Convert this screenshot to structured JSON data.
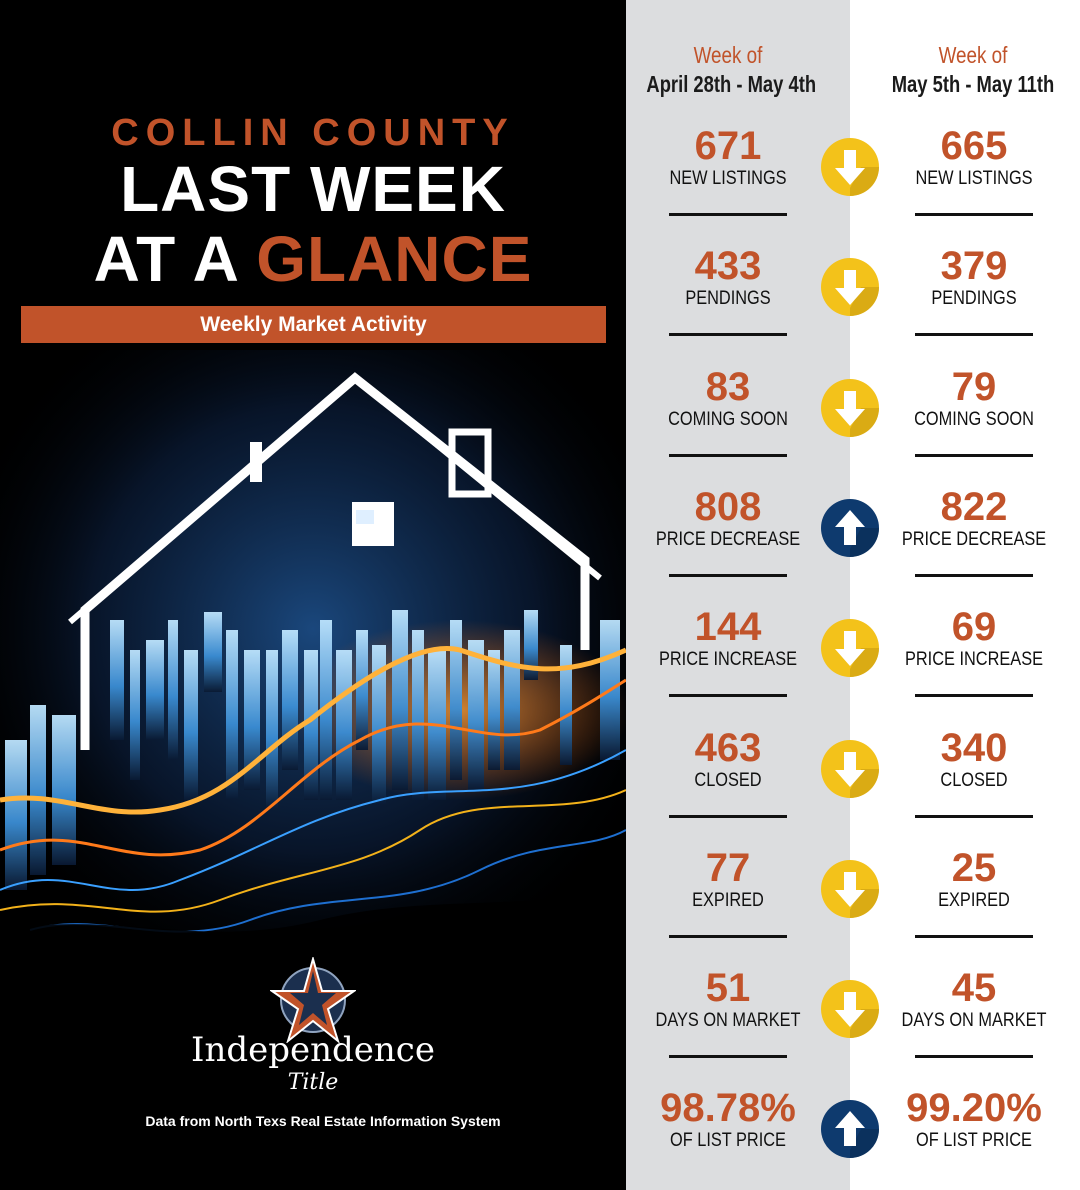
{
  "header": {
    "county": "COLLIN COUNTY",
    "headline_line1": "LAST WEEK",
    "headline_line2_white": "AT A ",
    "headline_line2_orange": "GLANCE",
    "banner": "Weekly Market Activity"
  },
  "branding": {
    "logo_name": "Independence",
    "logo_sub": "Title",
    "source_note": "Data from North Texs Real Estate Information System"
  },
  "weeks": {
    "prev": {
      "label": "Week of",
      "range": "April 28th - May 4th"
    },
    "curr": {
      "label": "Week of",
      "range": "May 5th - May 11th"
    }
  },
  "colors": {
    "accent": "#c1532a",
    "down_arrow": "#f3c21a",
    "up_arrow": "#0e3a6e",
    "left_bg": "#000000",
    "prev_col_bg": "#dcdddf"
  },
  "metrics": [
    {
      "label": "NEW LISTINGS",
      "prev": "671",
      "curr": "665",
      "trend": "down"
    },
    {
      "label": "PENDINGS",
      "prev": "433",
      "curr": "379",
      "trend": "down"
    },
    {
      "label": "COMING SOON",
      "prev": "83",
      "curr": "79",
      "trend": "down"
    },
    {
      "label": "PRICE DECREASE",
      "prev": "808",
      "curr": "822",
      "trend": "up"
    },
    {
      "label": "PRICE INCREASE",
      "prev": "144",
      "curr": "69",
      "trend": "down"
    },
    {
      "label": "CLOSED",
      "prev": "463",
      "curr": "340",
      "trend": "down"
    },
    {
      "label": "EXPIRED",
      "prev": "77",
      "curr": "25",
      "trend": "down"
    },
    {
      "label": "DAYS ON MARKET",
      "prev": "51",
      "curr": "45",
      "trend": "down"
    },
    {
      "label": "OF LIST PRICE",
      "prev": "98.78%",
      "curr": "99.20%",
      "trend": "up"
    }
  ]
}
